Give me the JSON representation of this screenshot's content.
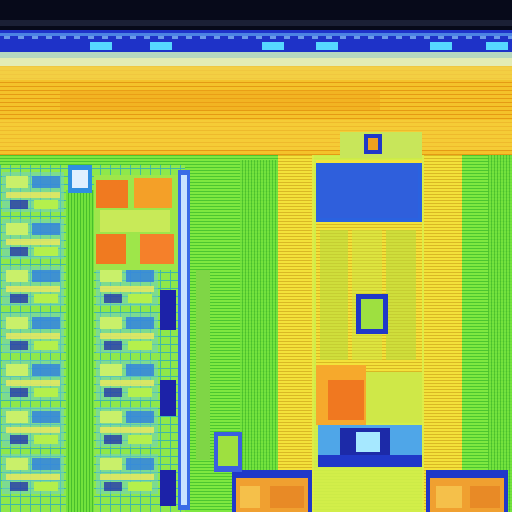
{
  "image": {
    "subject": "die-micrograph",
    "palette": {
      "top_dark": "#070a1a",
      "pad_row": "#1e32c8",
      "pad": "#56d8ff",
      "stripe_pale": "#dfe9a8",
      "stripe_orange": "#f2b21a",
      "stripe_yellow": "#f7d63a",
      "green": "#5ee63c",
      "lime": "#a8f03c",
      "yellow": "#f6ee3a",
      "blue": "#1f5ce0",
      "deep_blue": "#1c22a8",
      "orange": "#f07a20",
      "cyan": "#4fd6e8"
    }
  }
}
